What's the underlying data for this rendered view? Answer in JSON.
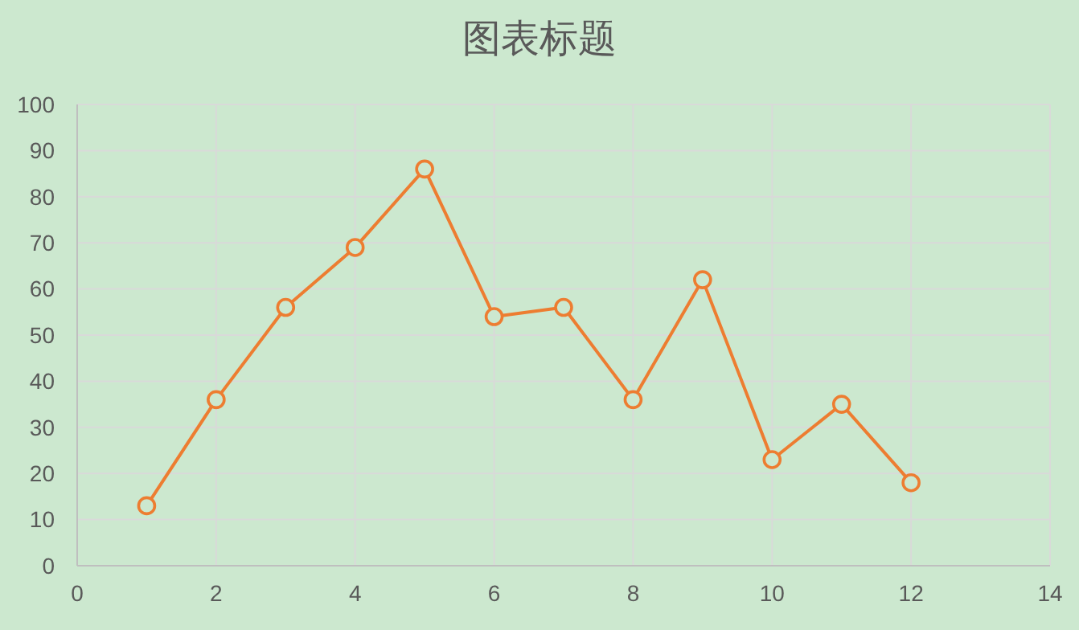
{
  "chart_data": {
    "type": "line",
    "title": "图表标题",
    "x": [
      1,
      2,
      3,
      4,
      5,
      6,
      7,
      8,
      9,
      10,
      11,
      12
    ],
    "series": [
      {
        "color": "#ed7d31",
        "values": [
          13,
          36,
          56,
          69,
          86,
          54,
          56,
          36,
          62,
          23,
          35,
          18
        ]
      }
    ],
    "xlim": [
      0,
      14
    ],
    "xticks": [
      0,
      2,
      4,
      6,
      8,
      10,
      12,
      14
    ],
    "ylim": [
      0,
      100
    ],
    "yticks": [
      0,
      10,
      20,
      30,
      40,
      50,
      60,
      70,
      80,
      90,
      100
    ],
    "grid": true,
    "marker": "circle",
    "line_style": "solid"
  }
}
